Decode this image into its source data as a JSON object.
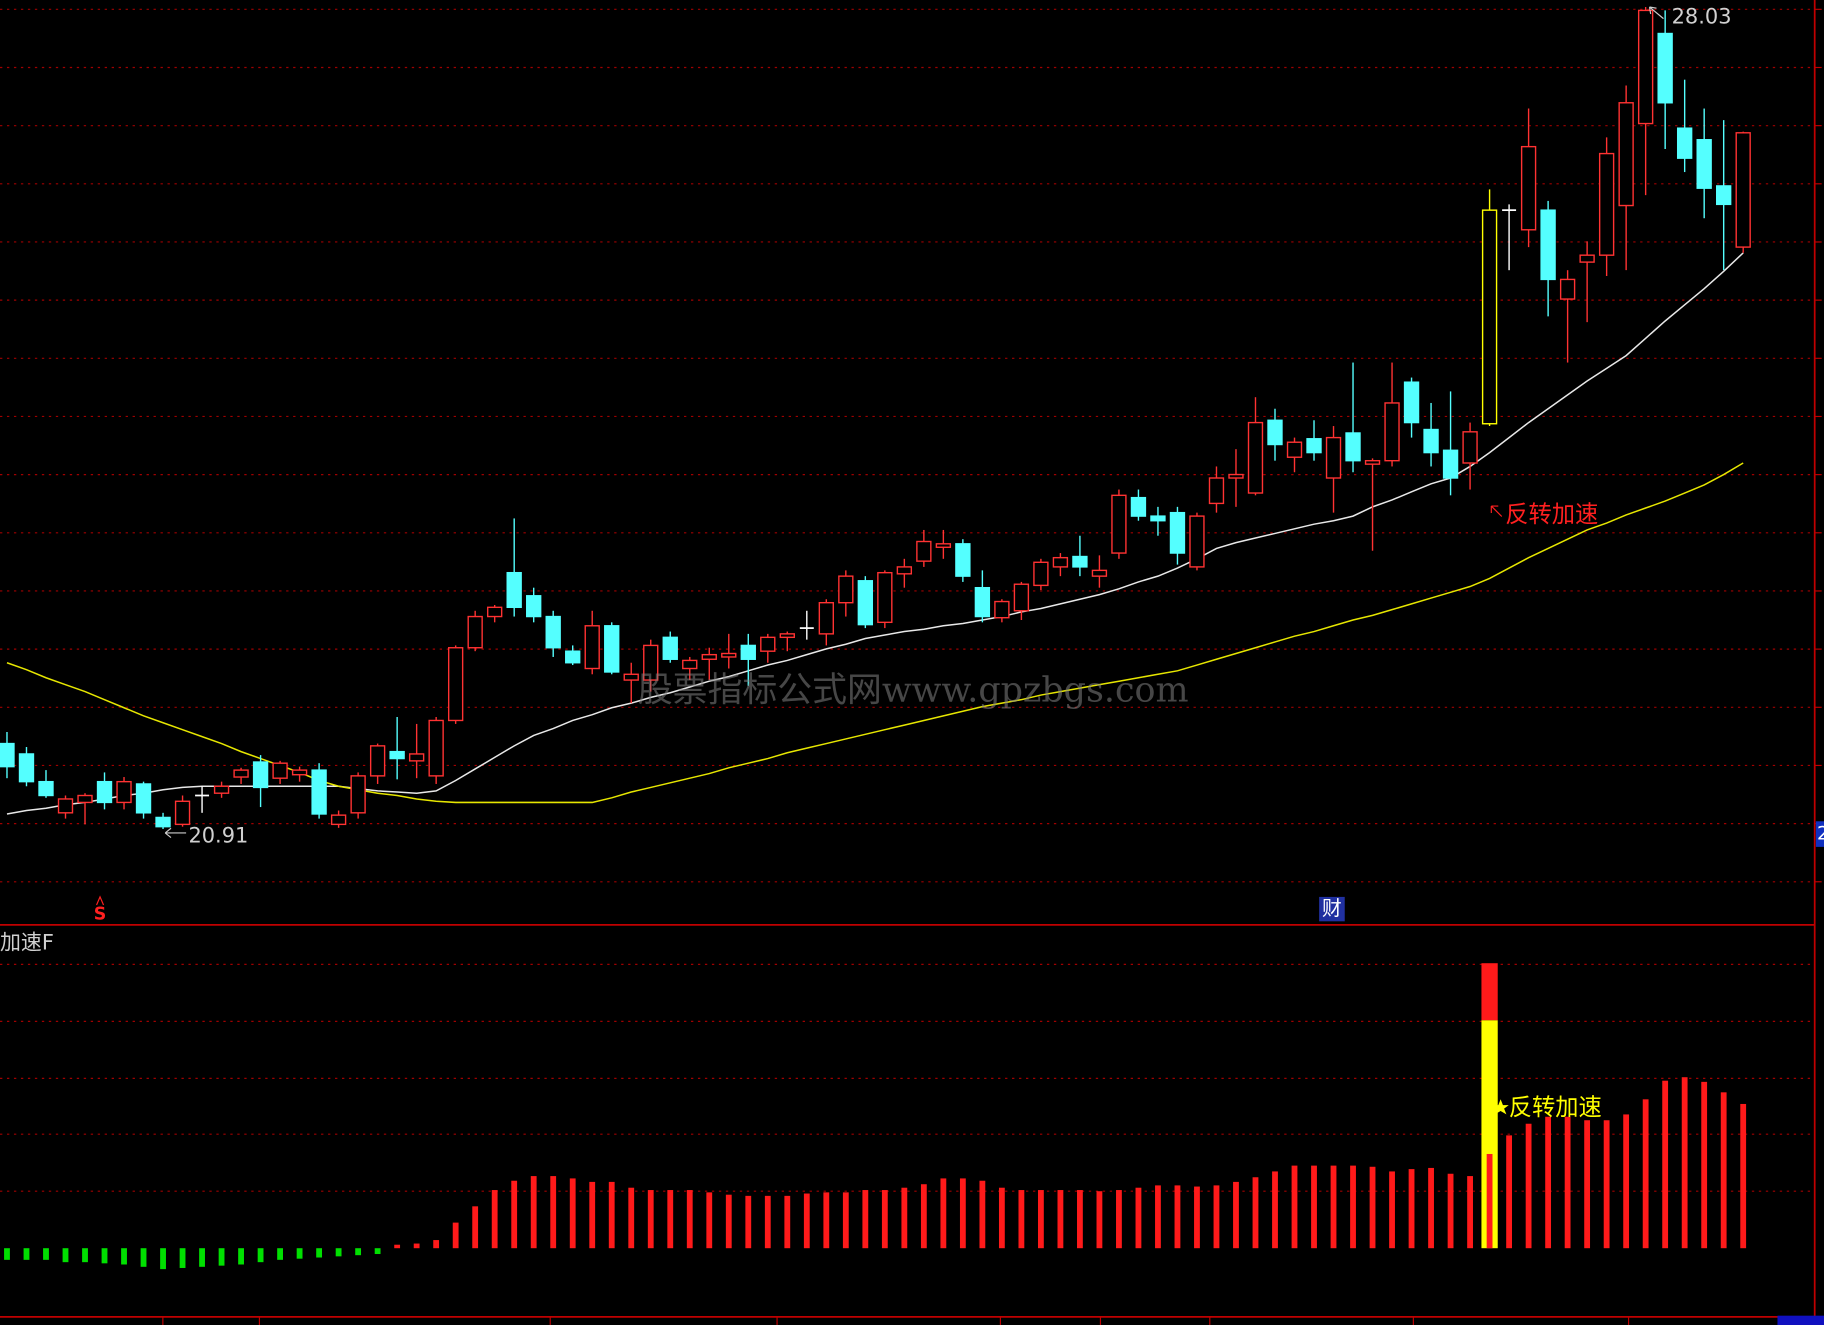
{
  "chart_data": [
    {
      "type": "candlestick",
      "open": [
        21.65,
        21.56,
        21.32,
        21.05,
        21.14,
        21.32,
        21.14,
        21.3,
        21.01,
        20.95,
        21.2,
        21.22,
        21.36,
        21.49,
        21.35,
        21.38,
        21.42,
        20.95,
        21.05,
        21.37,
        21.58,
        21.5,
        21.37,
        21.85,
        22.48,
        22.75,
        23.13,
        22.93,
        22.75,
        22.45,
        22.3,
        22.67,
        22.2,
        22.2,
        22.57,
        22.3,
        22.38,
        22.4,
        22.5,
        22.45,
        22.57,
        22.65,
        22.6,
        22.87,
        23.06,
        22.7,
        23.12,
        23.23,
        23.35,
        23.38,
        23.0,
        22.74,
        22.8,
        23.02,
        23.18,
        23.27,
        23.1,
        23.3,
        23.78,
        23.62,
        23.65,
        23.18,
        23.73,
        23.95,
        23.82,
        24.45,
        24.13,
        24.29,
        23.95,
        24.34,
        24.07,
        24.1,
        24.78,
        24.37,
        24.19,
        24.08,
        24.42,
        26.27,
        26.1,
        26.27,
        25.5,
        25.82,
        25.88,
        26.31,
        27.02,
        27.8,
        26.98,
        26.88,
        26.48,
        25.95
      ],
      "high": [
        21.75,
        21.62,
        21.42,
        21.2,
        21.22,
        21.4,
        21.36,
        21.32,
        21.05,
        21.2,
        21.28,
        21.32,
        21.44,
        21.55,
        21.5,
        21.45,
        21.48,
        21.07,
        21.4,
        21.65,
        21.88,
        21.82,
        21.88,
        22.5,
        22.8,
        22.85,
        23.6,
        23.0,
        22.8,
        22.5,
        22.8,
        22.7,
        22.35,
        22.55,
        22.62,
        22.4,
        22.48,
        22.6,
        22.6,
        22.6,
        22.62,
        22.8,
        22.9,
        23.15,
        23.1,
        23.15,
        23.25,
        23.5,
        23.5,
        23.42,
        23.15,
        22.9,
        23.05,
        23.25,
        23.3,
        23.45,
        23.28,
        23.85,
        23.85,
        23.7,
        23.7,
        23.65,
        24.05,
        24.2,
        24.65,
        24.55,
        24.3,
        24.45,
        24.4,
        24.95,
        24.12,
        24.95,
        24.82,
        24.6,
        24.7,
        24.43,
        26.45,
        26.32,
        27.15,
        26.35,
        25.75,
        26.0,
        26.9,
        27.35,
        28.03,
        28.0,
        27.4,
        27.15,
        27.05,
        26.95
      ],
      "low": [
        21.35,
        21.28,
        21.18,
        21.0,
        20.95,
        21.08,
        21.08,
        21.0,
        20.91,
        20.93,
        21.05,
        21.18,
        21.3,
        21.1,
        21.3,
        21.32,
        21.0,
        20.92,
        21.0,
        21.3,
        21.34,
        21.35,
        21.3,
        21.82,
        22.45,
        22.7,
        22.75,
        22.7,
        22.4,
        22.33,
        22.25,
        22.25,
        22.0,
        22.1,
        22.35,
        22.2,
        22.2,
        22.3,
        22.15,
        22.35,
        22.45,
        22.55,
        22.5,
        22.75,
        22.65,
        22.65,
        23.0,
        23.18,
        23.25,
        23.05,
        22.7,
        22.7,
        22.72,
        22.98,
        23.1,
        23.1,
        23.0,
        23.25,
        23.58,
        23.45,
        23.2,
        23.15,
        23.65,
        23.7,
        23.8,
        24.1,
        24.0,
        24.1,
        23.65,
        24.0,
        23.32,
        24.05,
        24.3,
        24.05,
        23.8,
        23.85,
        24.4,
        25.75,
        25.95,
        25.35,
        24.95,
        25.3,
        25.7,
        25.75,
        26.4,
        26.8,
        26.6,
        26.2,
        25.75,
        25.9
      ],
      "close": [
        21.45,
        21.32,
        21.2,
        21.17,
        21.2,
        21.14,
        21.32,
        21.05,
        20.93,
        21.15,
        21.2,
        21.28,
        21.42,
        21.27,
        21.48,
        21.42,
        21.04,
        21.03,
        21.37,
        21.63,
        21.52,
        21.56,
        21.85,
        22.48,
        22.75,
        22.83,
        22.83,
        22.75,
        22.48,
        22.35,
        22.67,
        22.27,
        22.25,
        22.5,
        22.38,
        22.37,
        22.42,
        22.43,
        22.38,
        22.57,
        22.6,
        22.65,
        22.87,
        23.1,
        22.68,
        23.13,
        23.18,
        23.4,
        23.38,
        23.1,
        22.75,
        22.88,
        23.03,
        23.22,
        23.26,
        23.18,
        23.15,
        23.8,
        23.62,
        23.58,
        23.3,
        23.62,
        23.95,
        23.98,
        24.43,
        24.24,
        24.26,
        24.17,
        24.3,
        24.1,
        24.1,
        24.6,
        24.43,
        24.17,
        23.95,
        24.35,
        26.27,
        26.27,
        26.82,
        25.67,
        25.67,
        25.88,
        26.76,
        27.2,
        28.0,
        27.2,
        26.72,
        26.46,
        26.32,
        26.94
      ],
      "ma": [
        {
          "color": "#e8e8e8",
          "values": [
            21.04,
            21.07,
            21.09,
            21.12,
            21.14,
            21.17,
            21.2,
            21.22,
            21.25,
            21.27,
            21.28,
            21.28,
            21.28,
            21.28,
            21.28,
            21.28,
            21.28,
            21.28,
            21.26,
            21.24,
            21.23,
            21.22,
            21.24,
            21.33,
            21.43,
            21.53,
            21.63,
            21.72,
            21.78,
            21.85,
            21.9,
            21.96,
            22.0,
            22.05,
            22.09,
            22.14,
            22.19,
            22.23,
            22.28,
            22.33,
            22.37,
            22.42,
            22.47,
            22.51,
            22.56,
            22.59,
            22.62,
            22.64,
            22.67,
            22.69,
            22.72,
            22.75,
            22.79,
            22.82,
            22.86,
            22.9,
            22.94,
            22.99,
            23.05,
            23.1,
            23.17,
            23.25,
            23.34,
            23.39,
            23.43,
            23.47,
            23.51,
            23.55,
            23.58,
            23.62,
            23.7,
            23.76,
            23.83,
            23.9,
            23.95,
            24.05,
            24.17,
            24.3,
            24.43,
            24.55,
            24.67,
            24.79,
            24.9,
            25.01,
            25.16,
            25.31,
            25.45,
            25.59,
            25.74,
            25.9
          ]
        },
        {
          "color": "#e6e600",
          "values": [
            22.35,
            22.29,
            22.22,
            22.16,
            22.1,
            22.03,
            21.96,
            21.89,
            21.83,
            21.77,
            21.71,
            21.65,
            21.58,
            21.52,
            21.46,
            21.4,
            21.33,
            21.28,
            21.25,
            21.22,
            21.2,
            21.17,
            21.15,
            21.14,
            21.14,
            21.14,
            21.14,
            21.14,
            21.14,
            21.14,
            21.14,
            21.18,
            21.23,
            21.27,
            21.31,
            21.35,
            21.39,
            21.44,
            21.48,
            21.52,
            21.57,
            21.61,
            21.65,
            21.69,
            21.73,
            21.77,
            21.81,
            21.85,
            21.89,
            21.93,
            21.97,
            22.0,
            22.03,
            22.07,
            22.1,
            22.13,
            22.16,
            22.19,
            22.22,
            22.25,
            22.28,
            22.33,
            22.38,
            22.43,
            22.48,
            22.53,
            22.58,
            22.62,
            22.67,
            22.72,
            22.76,
            22.81,
            22.86,
            22.91,
            22.96,
            23.01,
            23.08,
            23.17,
            23.26,
            23.34,
            23.42,
            23.5,
            23.56,
            23.63,
            23.69,
            23.75,
            23.82,
            23.89,
            23.98,
            24.08
          ]
        }
      ],
      "ylim": [
        20.08,
        28.09
      ],
      "colors": {
        "up": "#ff3232",
        "down": "#54ffff",
        "doji": "#ffffff",
        "signal": "#ffff00"
      },
      "max_label": 28.03,
      "min_label": 20.91,
      "signal_text": "反转加速",
      "markers": [
        "S",
        "财"
      ],
      "edge_label": "2",
      "watermark": "股票指标公式网www.gpzbgs.com"
    },
    {
      "type": "bar",
      "title": "加速F",
      "values": [
        -10,
        -10,
        -10,
        -12,
        -12,
        -13,
        -14,
        -16,
        -18,
        -17,
        -16,
        -15,
        -14,
        -12,
        -10,
        -9,
        -8,
        -7,
        -6,
        -5,
        3,
        4,
        7,
        22,
        36,
        50,
        58,
        62,
        62,
        60,
        57,
        57,
        52,
        50,
        50,
        50,
        48,
        46,
        45,
        45,
        45,
        47,
        48,
        48,
        50,
        50,
        52,
        55,
        60,
        60,
        58,
        52,
        50,
        50,
        50,
        50,
        49,
        50,
        52,
        54,
        54,
        53,
        54,
        57,
        61,
        66,
        71,
        71,
        71,
        71,
        70,
        66,
        68,
        69,
        64,
        62,
        81,
        97,
        107,
        113,
        113,
        110,
        110,
        115,
        128,
        144,
        147,
        143,
        134,
        124
      ],
      "colors": {
        "positive": "#ff1a1a",
        "negative": "#00e000"
      },
      "signal": [
        {
          "color": "#ffff00",
          "values": [
            null,
            null,
            null,
            null,
            null,
            null,
            null,
            null,
            null,
            null,
            null,
            null,
            null,
            null,
            null,
            null,
            null,
            null,
            null,
            null,
            null,
            null,
            null,
            null,
            null,
            null,
            null,
            null,
            null,
            null,
            null,
            null,
            null,
            null,
            null,
            null,
            null,
            null,
            null,
            null,
            null,
            null,
            null,
            null,
            null,
            null,
            null,
            null,
            null,
            null,
            null,
            null,
            null,
            null,
            null,
            null,
            null,
            null,
            null,
            null,
            null,
            null,
            null,
            null,
            null,
            null,
            null,
            null,
            null,
            null,
            null,
            null,
            null,
            null,
            null,
            null,
            196,
            null,
            null,
            null,
            null,
            null,
            null,
            null,
            null,
            null,
            null,
            null,
            null,
            null
          ]
        },
        {
          "color": "#ff1a1a",
          "values": [
            null,
            null,
            null,
            null,
            null,
            null,
            null,
            null,
            null,
            null,
            null,
            null,
            null,
            null,
            null,
            null,
            null,
            null,
            null,
            null,
            null,
            null,
            null,
            null,
            null,
            null,
            null,
            null,
            null,
            null,
            null,
            null,
            null,
            null,
            null,
            null,
            null,
            null,
            null,
            null,
            null,
            null,
            null,
            null,
            null,
            null,
            null,
            null,
            null,
            null,
            null,
            null,
            null,
            null,
            null,
            null,
            null,
            null,
            null,
            null,
            null,
            null,
            null,
            null,
            null,
            null,
            null,
            null,
            null,
            null,
            null,
            null,
            null,
            null,
            null,
            null,
            49,
            null,
            null,
            null,
            null,
            null,
            null,
            null,
            null,
            null,
            null,
            null,
            null,
            null
          ]
        }
      ],
      "signal_text": "反转加速",
      "ylim": [
        -59,
        276
      ]
    }
  ]
}
